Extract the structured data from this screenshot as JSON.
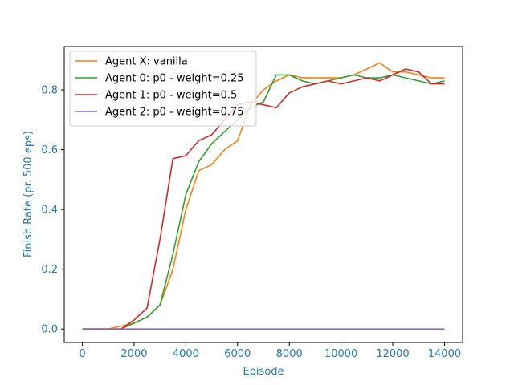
{
  "colors": {
    "axis_label": "#1f77b4",
    "series": [
      "#ff7f0e",
      "#2ca02c",
      "#d62728",
      "#9467bd"
    ]
  },
  "chart_data": {
    "type": "line",
    "title": "",
    "xlabel": "Episode",
    "ylabel": "Finish Rate (pr. 500 eps)",
    "xlim": [
      -700,
      14700
    ],
    "ylim": [
      -0.045,
      0.945
    ],
    "xticks": [
      0,
      2000,
      4000,
      6000,
      8000,
      10000,
      12000,
      14000
    ],
    "xtick_labels": [
      "0",
      "2000",
      "4000",
      "6000",
      "8000",
      "10000",
      "12000",
      "14000"
    ],
    "yticks": [
      0.0,
      0.2,
      0.4,
      0.6,
      0.8
    ],
    "ytick_labels": [
      "0.0",
      "0.2",
      "0.4",
      "0.6",
      "0.8"
    ],
    "grid": false,
    "legend_position": "top-left",
    "x": [
      0,
      1000,
      1500,
      2000,
      2500,
      3000,
      3500,
      4000,
      4500,
      5000,
      5500,
      6000,
      6500,
      7000,
      7500,
      8000,
      8500,
      9000,
      9500,
      10000,
      10500,
      11000,
      11500,
      12000,
      12500,
      13000,
      13500,
      14000
    ],
    "series": [
      {
        "name": "Agent X: vanilla",
        "color": "#ff7f0e",
        "values": [
          0.0,
          0.0,
          0.01,
          0.02,
          0.04,
          0.08,
          0.2,
          0.4,
          0.53,
          0.55,
          0.6,
          0.63,
          0.75,
          0.8,
          0.83,
          0.85,
          0.84,
          0.84,
          0.84,
          0.84,
          0.85,
          0.87,
          0.89,
          0.86,
          0.86,
          0.85,
          0.84,
          0.84
        ]
      },
      {
        "name": "Agent 0: p0 - weight=0.25",
        "color": "#2ca02c",
        "values": [
          0.0,
          0.0,
          0.0,
          0.02,
          0.04,
          0.08,
          0.25,
          0.45,
          0.56,
          0.62,
          0.66,
          0.7,
          0.74,
          0.76,
          0.85,
          0.85,
          0.83,
          0.82,
          0.83,
          0.84,
          0.85,
          0.84,
          0.84,
          0.85,
          0.84,
          0.83,
          0.82,
          0.83
        ]
      },
      {
        "name": "Agent 1: p0 - weight=0.5",
        "color": "#d62728",
        "values": [
          0.0,
          0.0,
          0.0,
          0.03,
          0.07,
          0.3,
          0.57,
          0.58,
          0.63,
          0.65,
          0.7,
          0.75,
          0.76,
          0.75,
          0.74,
          0.79,
          0.81,
          0.82,
          0.83,
          0.82,
          0.83,
          0.84,
          0.83,
          0.85,
          0.87,
          0.86,
          0.82,
          0.82
        ]
      },
      {
        "name": "Agent 2: p0 - weight=0.75",
        "color": "#9467bd",
        "values": [
          0.0,
          0.0,
          0.0,
          0.0,
          0.0,
          0.0,
          0.0,
          0.0,
          0.0,
          0.0,
          0.0,
          0.0,
          0.0,
          0.0,
          0.0,
          0.0,
          0.0,
          0.0,
          0.0,
          0.0,
          0.0,
          0.0,
          0.0,
          0.0,
          0.0,
          0.0,
          0.0,
          0.0
        ]
      }
    ]
  }
}
